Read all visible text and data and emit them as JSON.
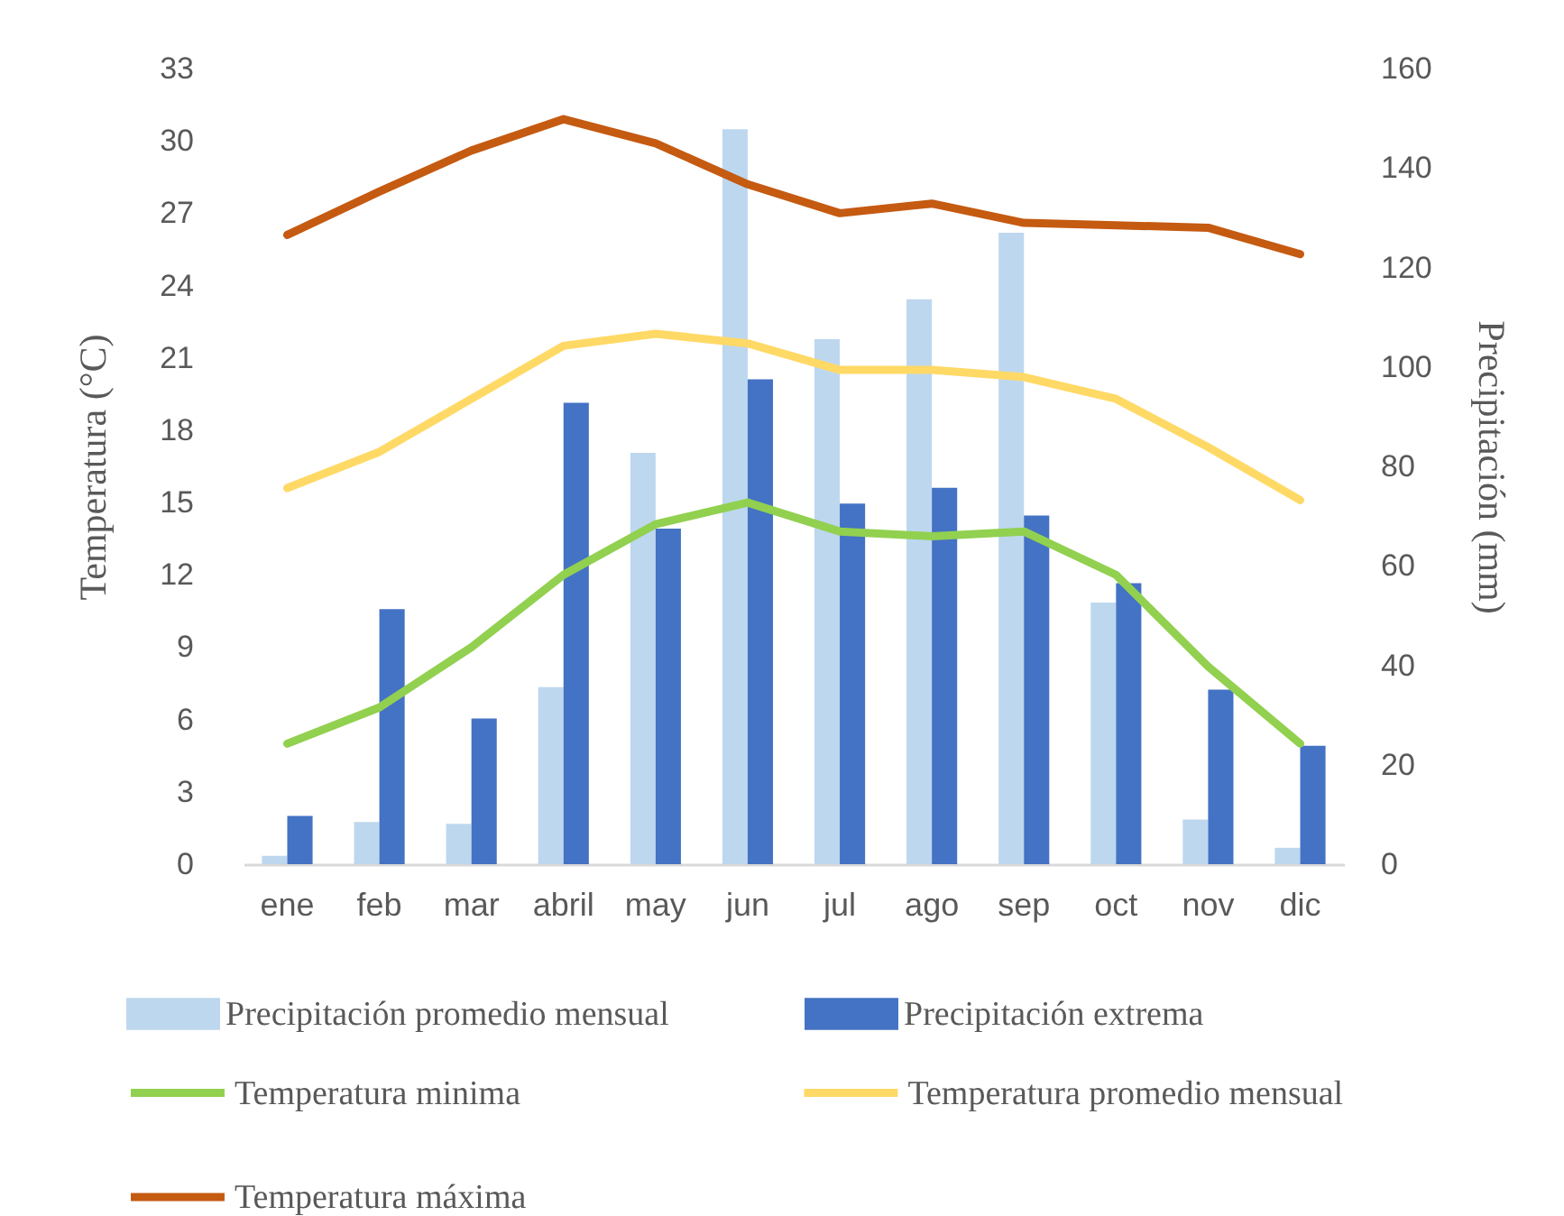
{
  "chart_data": {
    "type": "bar",
    "ylabel": "Temperatura (°C)",
    "y2label": "Precipitación (mm)",
    "categories": [
      "ene",
      "feb",
      "mar",
      "abril",
      "may",
      "jun",
      "jul",
      "ago",
      "sep",
      "oct",
      "nov",
      "dic"
    ],
    "series": [
      {
        "name": "Precipitación promedio mensual",
        "type": "bar",
        "axis": "y2",
        "color": "#bdd7ee",
        "values": [
          1.7,
          8.5,
          8.1,
          35.6,
          82.7,
          147.8,
          105.6,
          113.6,
          127,
          52.6,
          9,
          3.3
        ]
      },
      {
        "name": "Precipitación extrema",
        "type": "bar",
        "axis": "y2",
        "color": "#4472c4",
        "values": [
          9.7,
          51.3,
          29.3,
          92.8,
          67.5,
          97.5,
          72.5,
          75.7,
          70.1,
          56.5,
          35.1,
          23.8
        ]
      },
      {
        "name": "Temperatura minima",
        "type": "line",
        "color": "#92d050",
        "values": [
          5,
          6.5,
          9,
          12,
          14.1,
          15,
          13.8,
          13.6,
          13.8,
          12,
          8.2,
          5
        ]
      },
      {
        "name": "Temperatura promedio mensual",
        "type": "line",
        "color": "#ffd966",
        "values": [
          15.6,
          17.1,
          19.3,
          21.5,
          22,
          21.6,
          20.5,
          20.5,
          20.2,
          19.3,
          17.3,
          15.1
        ]
      },
      {
        "name": "Temperatura máxima",
        "type": "line",
        "color": "#c55a11",
        "values": [
          26.1,
          27.9,
          29.6,
          30.9,
          29.9,
          28.2,
          27,
          27.4,
          26.6,
          26.5,
          26.4,
          25.3
        ]
      }
    ],
    "ylim": [
      0,
      33
    ],
    "yticks": [
      0,
      3,
      6,
      9,
      12,
      15,
      18,
      21,
      24,
      27,
      30,
      33
    ],
    "y2lim": [
      0,
      160
    ],
    "y2ticks": [
      0,
      20,
      40,
      60,
      80,
      100,
      120,
      140,
      160
    ],
    "grid": false,
    "legend": "bottom",
    "line_style": "solid",
    "marker": "none"
  }
}
